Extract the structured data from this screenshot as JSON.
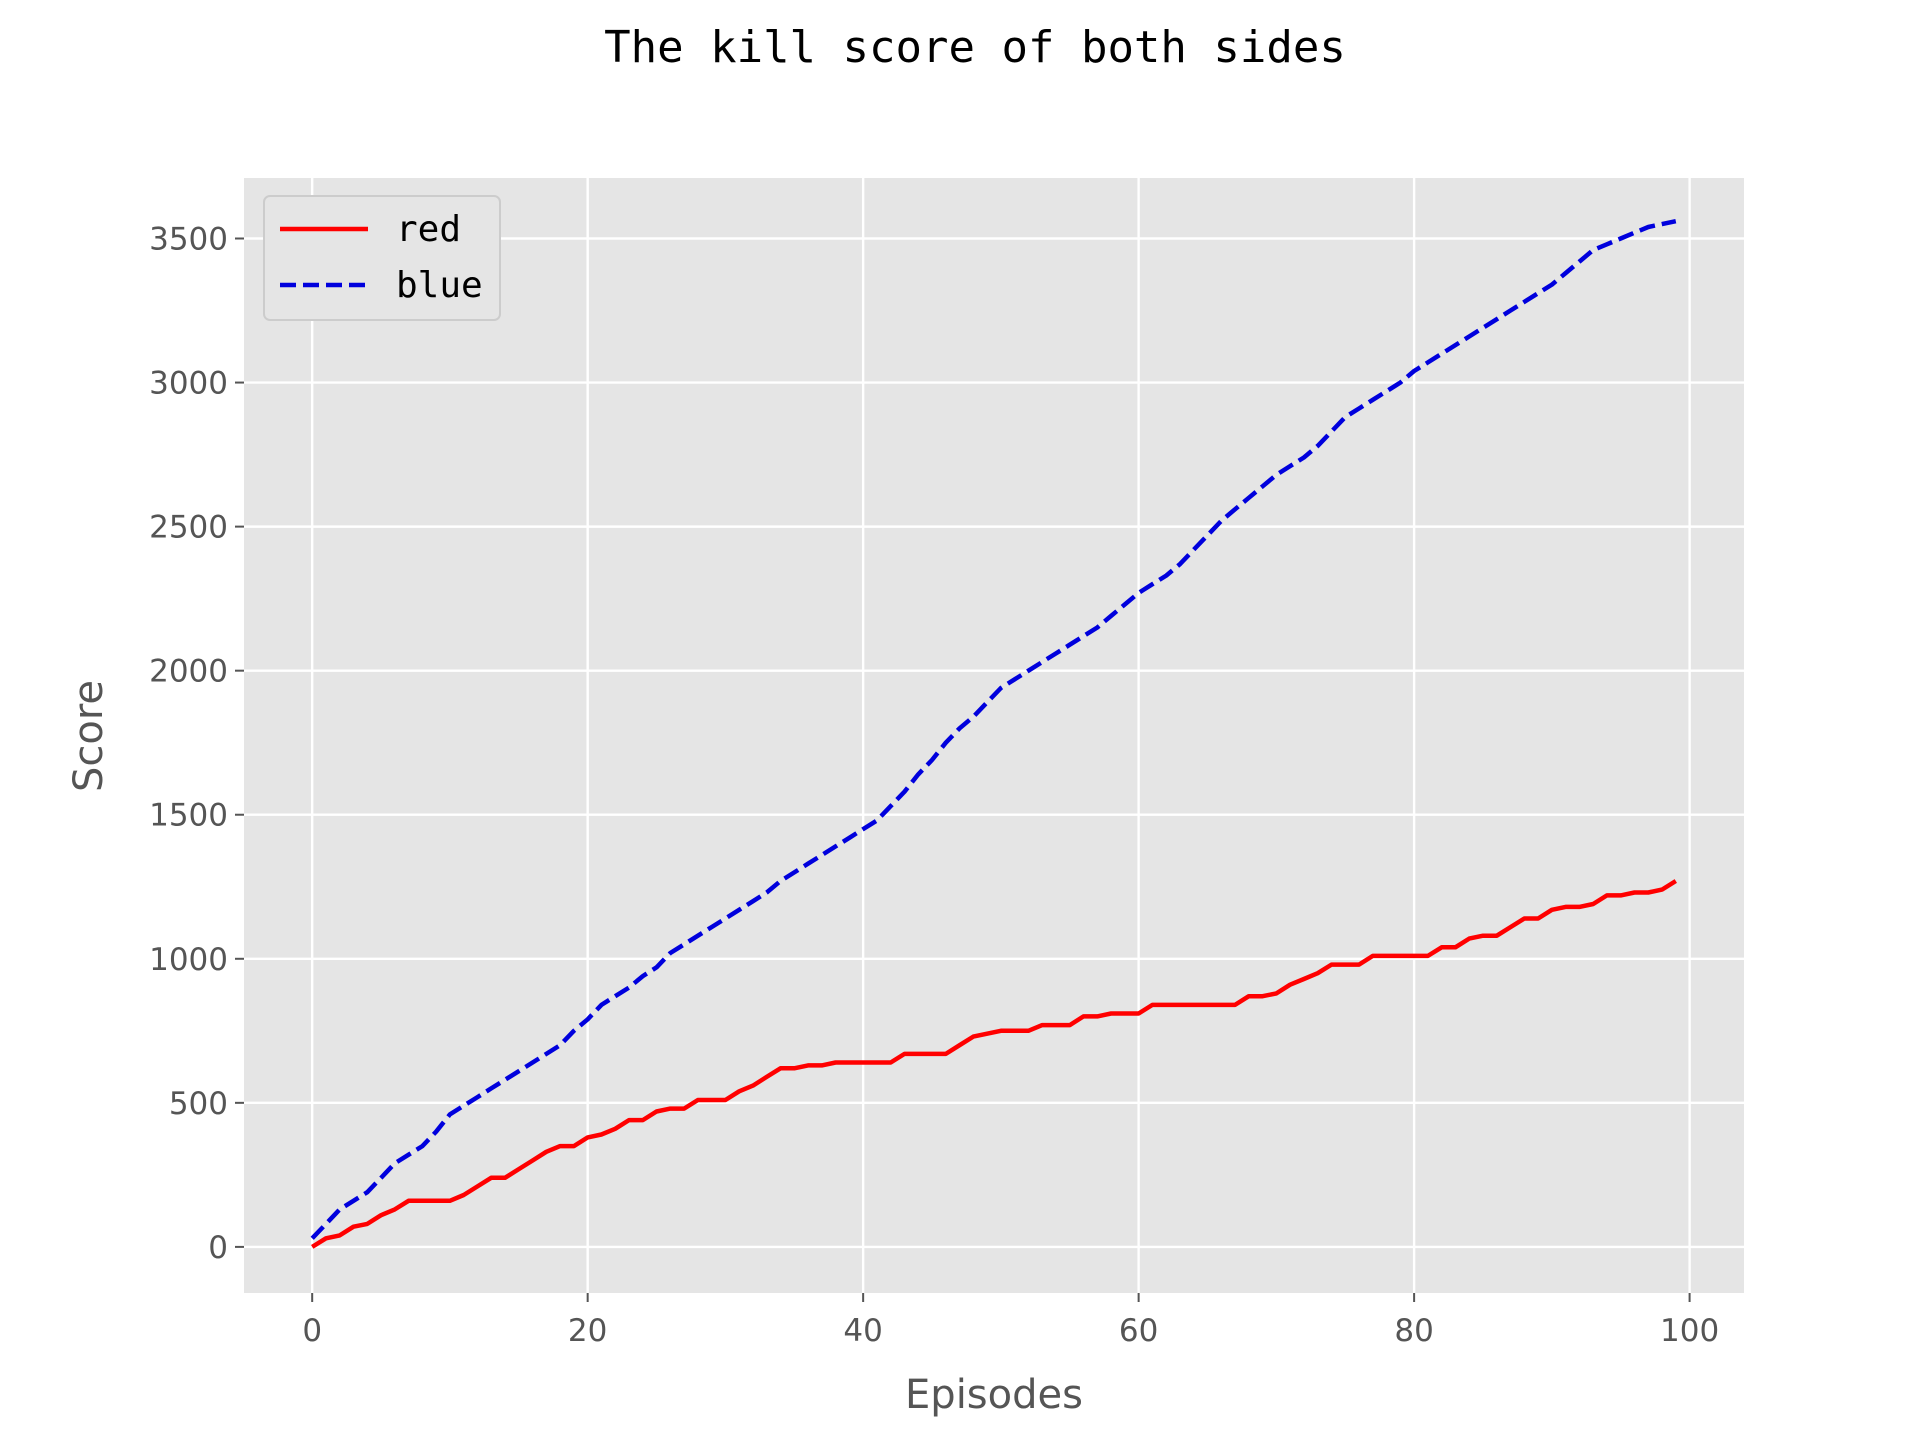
{
  "chart_data": {
    "type": "line",
    "title": "The kill score of both sides",
    "xlabel": "Episodes",
    "ylabel": "Score",
    "xlim": [
      -4.95,
      103.95
    ],
    "ylim": [
      -160,
      3710
    ],
    "xticks": [
      0,
      20,
      40,
      60,
      80,
      100
    ],
    "yticks": [
      0,
      500,
      1000,
      1500,
      2000,
      2500,
      3000,
      3500
    ],
    "grid": true,
    "legend_position": "top-left",
    "background_color": "#e5e5e5",
    "grid_color": "#ffffff",
    "series": [
      {
        "name": "red",
        "color": "#ff0000",
        "linestyle": "solid",
        "values": [
          0,
          30,
          40,
          70,
          80,
          110,
          130,
          160,
          160,
          160,
          160,
          180,
          210,
          240,
          240,
          270,
          300,
          330,
          350,
          350,
          380,
          390,
          410,
          440,
          440,
          470,
          480,
          480,
          510,
          510,
          510,
          540,
          560,
          590,
          620,
          620,
          630,
          630,
          640,
          640,
          640,
          640,
          640,
          670,
          670,
          670,
          670,
          700,
          730,
          740,
          750,
          750,
          750,
          770,
          770,
          770,
          800,
          800,
          810,
          810,
          810,
          840,
          840,
          840,
          840,
          840,
          840,
          840,
          870,
          870,
          880,
          910,
          930,
          950,
          980,
          980,
          980,
          1010,
          1010,
          1010,
          1010,
          1010,
          1040,
          1040,
          1070,
          1080,
          1080,
          1110,
          1140,
          1140,
          1170,
          1180,
          1180,
          1190,
          1220,
          1220,
          1230,
          1230,
          1240,
          1270
        ]
      },
      {
        "name": "blue",
        "color": "#0000dd",
        "linestyle": "dashed",
        "values": [
          30,
          80,
          130,
          160,
          190,
          240,
          290,
          320,
          350,
          400,
          460,
          490,
          520,
          550,
          580,
          610,
          640,
          670,
          700,
          750,
          790,
          840,
          870,
          900,
          940,
          970,
          1020,
          1050,
          1080,
          1110,
          1140,
          1170,
          1200,
          1230,
          1270,
          1300,
          1330,
          1360,
          1390,
          1420,
          1450,
          1480,
          1530,
          1580,
          1640,
          1690,
          1750,
          1800,
          1840,
          1890,
          1940,
          1970,
          2000,
          2030,
          2060,
          2090,
          2120,
          2150,
          2190,
          2230,
          2270,
          2300,
          2330,
          2370,
          2420,
          2470,
          2520,
          2560,
          2600,
          2640,
          2680,
          2710,
          2740,
          2780,
          2830,
          2880,
          2910,
          2940,
          2970,
          3000,
          3040,
          3070,
          3100,
          3130,
          3160,
          3190,
          3220,
          3250,
          3280,
          3310,
          3340,
          3380,
          3420,
          3460,
          3480,
          3500,
          3520,
          3540,
          3550,
          3560
        ]
      }
    ]
  }
}
